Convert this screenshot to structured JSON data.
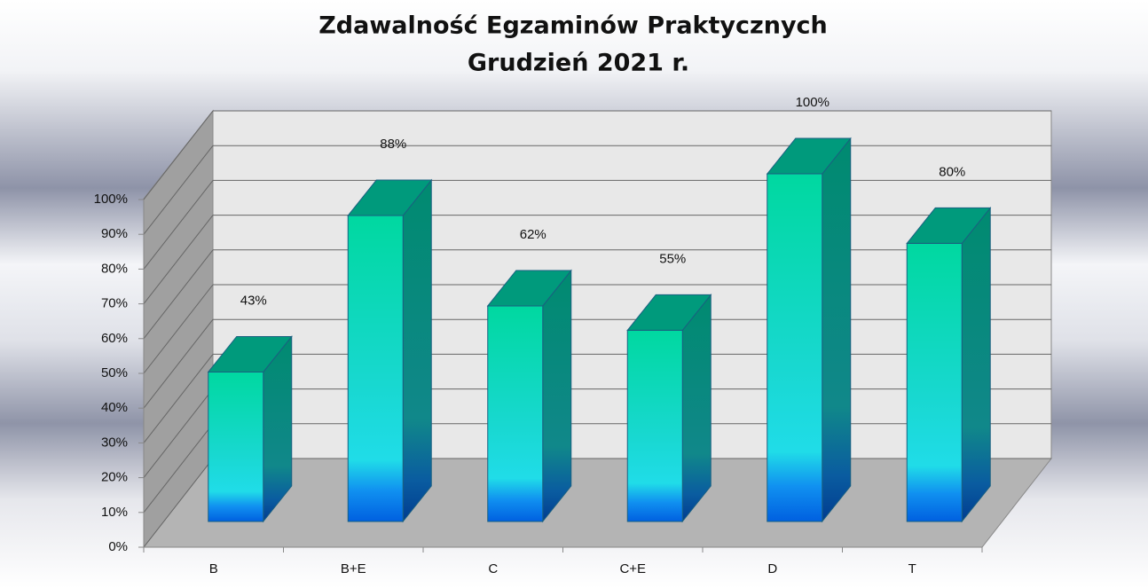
{
  "chart_data": {
    "type": "bar3d",
    "title": "Zdawalność Egzaminów Praktycznych",
    "subtitle": "Grudzień 2021 r.",
    "categories": [
      "B",
      "B+E",
      "C",
      "C+E",
      "D",
      "T"
    ],
    "values": [
      43,
      88,
      62,
      55,
      100,
      80
    ],
    "value_labels": [
      "43%",
      "88%",
      "62%",
      "55%",
      "100%",
      "80%"
    ],
    "color": "#00d8a0",
    "ylim": [
      0,
      100
    ],
    "yticks": [
      {
        "value": 0,
        "label": "0%"
      },
      {
        "value": 10,
        "label": "10%"
      },
      {
        "value": 20,
        "label": "20%"
      },
      {
        "value": 30,
        "label": "30%"
      },
      {
        "value": 40,
        "label": "40%"
      },
      {
        "value": 50,
        "label": "50%"
      },
      {
        "value": 60,
        "label": "60%"
      },
      {
        "value": 70,
        "label": "70%"
      },
      {
        "value": 80,
        "label": "80%"
      },
      {
        "value": 90,
        "label": "90%"
      },
      {
        "value": 100,
        "label": "100%"
      }
    ],
    "grid": true
  }
}
